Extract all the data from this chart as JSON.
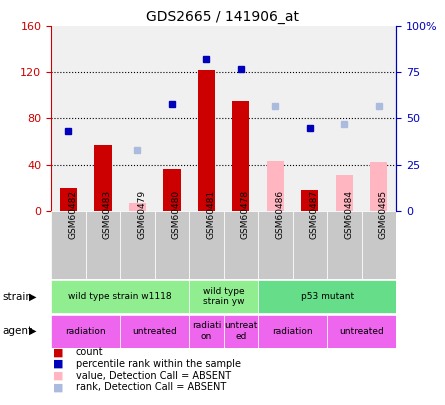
{
  "title": "GDS2665 / 141906_at",
  "samples": [
    "GSM60482",
    "GSM60483",
    "GSM60479",
    "GSM60480",
    "GSM60481",
    "GSM60478",
    "GSM60486",
    "GSM60487",
    "GSM60484",
    "GSM60485"
  ],
  "count_values": [
    20,
    57,
    null,
    36,
    122,
    95,
    null,
    18,
    null,
    null
  ],
  "rank_values": [
    43,
    null,
    null,
    58,
    82,
    77,
    null,
    45,
    null,
    null
  ],
  "absent_count": [
    null,
    null,
    7,
    null,
    null,
    null,
    43,
    null,
    31,
    42
  ],
  "absent_rank": [
    null,
    null,
    33,
    null,
    null,
    null,
    57,
    null,
    47,
    57
  ],
  "ylim_left": [
    0,
    160
  ],
  "ylim_right": [
    0,
    100
  ],
  "yticks_left": [
    0,
    40,
    80,
    120,
    160
  ],
  "yticks_right": [
    0,
    25,
    50,
    75,
    100
  ],
  "ytick_labels_right": [
    "0",
    "25",
    "50",
    "75",
    "100%"
  ],
  "strain_groups": [
    {
      "label": "wild type strain w1118",
      "start": 0,
      "end": 4,
      "color": "#90EE90"
    },
    {
      "label": "wild type\nstrain yw",
      "start": 4,
      "end": 6,
      "color": "#90EE90"
    },
    {
      "label": "p53 mutant",
      "start": 6,
      "end": 10,
      "color": "#66DD88"
    }
  ],
  "agent_groups": [
    {
      "label": "radiation",
      "start": 0,
      "end": 2,
      "color": "#EE66EE"
    },
    {
      "label": "untreated",
      "start": 2,
      "end": 4,
      "color": "#EE66EE"
    },
    {
      "label": "radiati\non",
      "start": 4,
      "end": 5,
      "color": "#EE66EE"
    },
    {
      "label": "untreat\ned",
      "start": 5,
      "end": 6,
      "color": "#EE66EE"
    },
    {
      "label": "radiation",
      "start": 6,
      "end": 8,
      "color": "#EE66EE"
    },
    {
      "label": "untreated",
      "start": 8,
      "end": 10,
      "color": "#EE66EE"
    }
  ],
  "count_color": "#CC0000",
  "rank_color": "#0000BB",
  "absent_count_color": "#FFB6C1",
  "absent_rank_color": "#AABBDD",
  "bar_width": 0.5,
  "plot_bg": "#F0F0F0",
  "label_color_left": "#CC0000",
  "label_color_right": "#0000BB",
  "tick_bg": "#C8C8C8"
}
